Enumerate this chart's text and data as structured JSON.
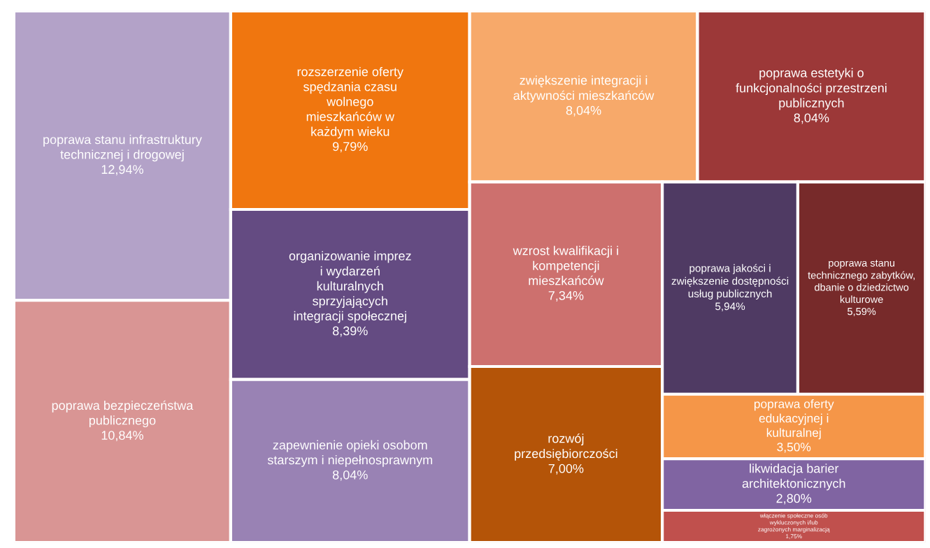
{
  "chart_data": {
    "type": "other",
    "categories": [
      "poprawa stanu infrastruktury\ntechnicznej i drogowej",
      "poprawa bezpieczeństwa\npublicznego",
      "rozszerzenie oferty\nspędzania czasu\nwolnego\nmieszkańców w\nkażdym wieku",
      "organizowanie imprez\ni wydarzeń\nkulturalnych\nsprzyjających\nintegracji społecznej",
      "zapewnienie opieki osobom\nstarszym i niepełnosprawnym",
      "zwiększenie integracji i\naktywności mieszkańców",
      "poprawa estetyki o\nfunkcjonalności przestrzeni\npublicznych",
      "wzrost kwalifikacji i\nkompetencji\nmieszkańców",
      "rozwój\nprzedsiębiorczości",
      "poprawa jakości i\nzwiększenie dostępności\nusług publicznych",
      "poprawa stanu\ntechnicznego zabytków,\ndbanie o dziedzictwo\nkulturowe",
      "poprawa oferty\nedukacyjnej i\nkulturalnej",
      "likwidacja barier\narchitektonicznych",
      "włączenie społeczne osób\nwykluczonych i/lub\nzagrożonych marginalizacją"
    ],
    "values": [
      12.94,
      10.84,
      9.79,
      8.39,
      8.04,
      8.04,
      8.04,
      7.34,
      7.0,
      5.94,
      5.59,
      3.5,
      2.8,
      1.75
    ],
    "value_labels": [
      "12,94%",
      "10,84%",
      "9,79%",
      "8,39%",
      "8,04%",
      "8,04%",
      "8,04%",
      "7,34%",
      "7,00%",
      "5,94%",
      "5,59%",
      "3,50%",
      "2,80%",
      "1,75%"
    ],
    "colors": [
      "#b3a2c8",
      "#d99594",
      "#f0760f",
      "#644b82",
      "#9982b4",
      "#f7a96a",
      "#9c3838",
      "#cd706e",
      "#b45408",
      "#4f3a63",
      "#772a2a",
      "#f59648",
      "#8064a2",
      "#c0504d"
    ]
  }
}
